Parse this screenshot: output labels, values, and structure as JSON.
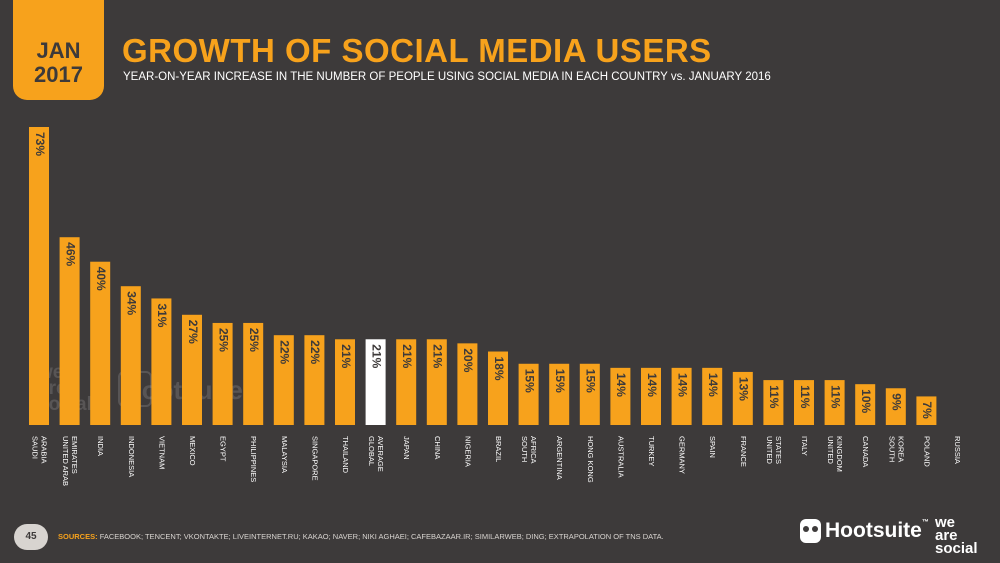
{
  "header": {
    "month": "JAN",
    "year": "2017",
    "title": "GROWTH OF SOCIAL MEDIA USERS",
    "subtitle": "YEAR-ON-YEAR INCREASE IN THE NUMBER OF PEOPLE USING SOCIAL MEDIA IN EACH COUNTRY vs. JANUARY 2016"
  },
  "footer": {
    "page_number": "45",
    "sources_label": "SOURCES:",
    "sources_text": "FACEBOOK; TENCENT; VKONTAKTE; LIVEINTERNET.RU; KAKAO; NAVER; NIKI AGHAEI; CAFEBAZAAR.IR; SIMILARWEB; DING; EXTRAPOLATION OF TNS DATA.",
    "logo_hootsuite": "Hootsuite",
    "logo_tm": "™",
    "logo_we": "we",
    "logo_are": "are",
    "logo_social": "social"
  },
  "watermark": {
    "we": "we",
    "are": "are",
    "social": "social",
    "hootsuite": "Hootsuite"
  },
  "colors": {
    "background": "#3d3a3a",
    "accent": "#f7a21c",
    "highlight": "#ffffff"
  },
  "chart_data": {
    "type": "bar",
    "categories": [
      [
        "SAUDI",
        "ARABIA"
      ],
      [
        "UNITED ARAB",
        "EMIRATES"
      ],
      [
        "INDIA"
      ],
      [
        "INDONESIA"
      ],
      [
        "VIETNAM"
      ],
      [
        "MEXICO"
      ],
      [
        "EGYPT"
      ],
      [
        "PHILIPPINES"
      ],
      [
        "MALAYSIA"
      ],
      [
        "SINGAPORE"
      ],
      [
        "THAILAND"
      ],
      [
        "GLOBAL",
        "AVERAGE"
      ],
      [
        "JAPAN"
      ],
      [
        "CHINA"
      ],
      [
        "NIGERIA"
      ],
      [
        "BRAZIL"
      ],
      [
        "SOUTH",
        "AFRICA"
      ],
      [
        "ARGENTINA"
      ],
      [
        "HONG KONG"
      ],
      [
        "AUSTRALIA"
      ],
      [
        "TURKEY"
      ],
      [
        "GERMANY"
      ],
      [
        "SPAIN"
      ],
      [
        "FRANCE"
      ],
      [
        "UNITED",
        "STATES"
      ],
      [
        "ITALY"
      ],
      [
        "UNITED",
        "KINGDOM"
      ],
      [
        "CANADA"
      ],
      [
        "SOUTH",
        "KOREA"
      ],
      [
        "POLAND"
      ],
      [
        "RUSSIA"
      ]
    ],
    "values": [
      73,
      46,
      40,
      34,
      31,
      27,
      25,
      25,
      22,
      22,
      21,
      21,
      21,
      21,
      20,
      18,
      15,
      15,
      15,
      14,
      14,
      14,
      14,
      13,
      11,
      11,
      11,
      10,
      9,
      7,
      0
    ],
    "labels": [
      "73%",
      "46%",
      "40%",
      "34%",
      "31%",
      "27%",
      "25%",
      "25%",
      "22%",
      "22%",
      "21%",
      "21%",
      "21%",
      "21%",
      "20%",
      "18%",
      "15%",
      "15%",
      "15%",
      "14%",
      "14%",
      "14%",
      "14%",
      "13%",
      "11%",
      "11%",
      "11%",
      "10%",
      "9%",
      "7%",
      ""
    ],
    "highlight_index": 11,
    "ylim": [
      0,
      73
    ],
    "grid": false,
    "legend": "none"
  }
}
